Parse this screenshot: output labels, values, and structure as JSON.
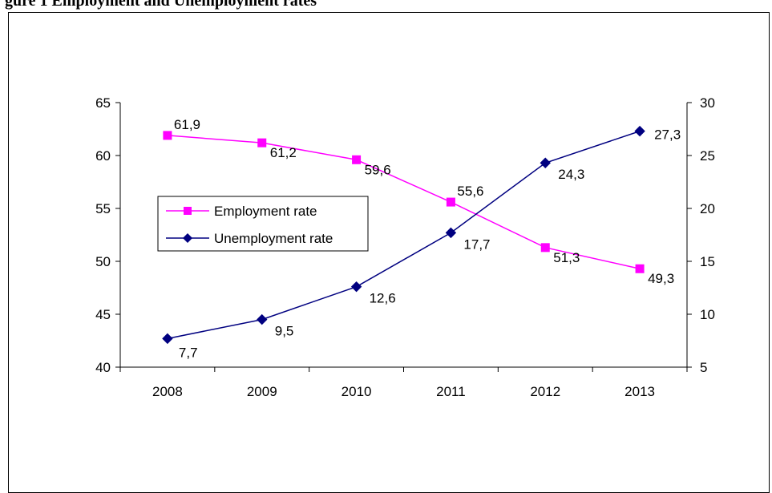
{
  "page": {
    "title": "gure 1 Employment and Unemployment rates"
  },
  "chart_data": {
    "type": "line",
    "categories": [
      "2008",
      "2009",
      "2010",
      "2011",
      "2012",
      "2013"
    ],
    "series": [
      {
        "name": "Employment rate",
        "axis": "left",
        "values": [
          61.9,
          61.2,
          59.6,
          55.6,
          51.3,
          49.3
        ],
        "labels": [
          "61,9",
          "61,2",
          "59,6",
          "55,6",
          "51,3",
          "49,3"
        ],
        "color": "#ff00ff",
        "marker": "square"
      },
      {
        "name": "Unemployment rate",
        "axis": "right",
        "values": [
          7.7,
          9.5,
          12.6,
          17.7,
          24.3,
          27.3
        ],
        "labels": [
          "7,7",
          "9,5",
          "12,6",
          "17,7",
          "24,3",
          "27,3"
        ],
        "color": "#000080",
        "marker": "diamond"
      }
    ],
    "y_left": {
      "min": 40,
      "max": 65,
      "ticks": [
        40,
        45,
        50,
        55,
        60,
        65
      ]
    },
    "y_right": {
      "min": 5,
      "max": 30,
      "ticks": [
        5,
        10,
        15,
        20,
        25,
        30
      ]
    },
    "legend": {
      "position": "left-middle"
    },
    "grid": false
  }
}
